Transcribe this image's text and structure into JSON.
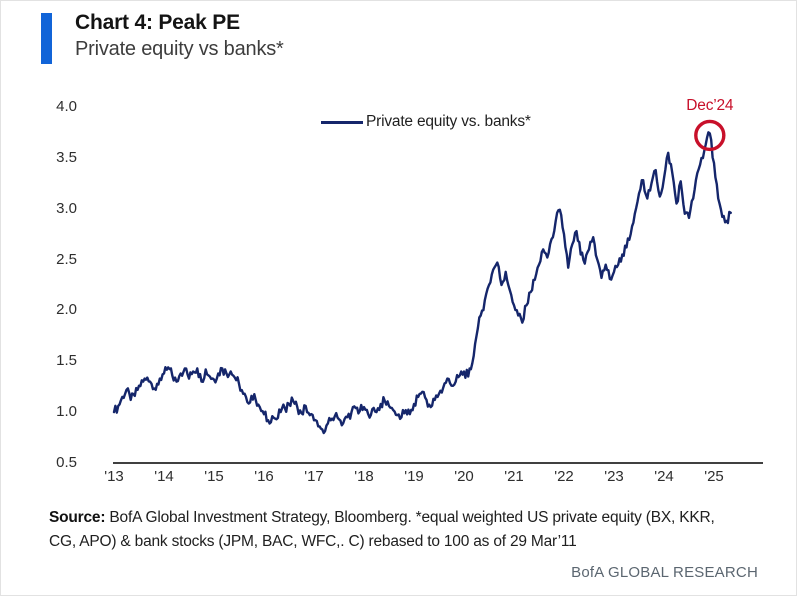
{
  "header": {
    "title": "Chart 4: Peak PE",
    "subtitle": "Private equity vs banks*"
  },
  "legend": {
    "label": "Private equity vs. banks*"
  },
  "annotation": {
    "label": "Dec’24"
  },
  "footer": {
    "source_label": "Source:",
    "source_line1": " BofA Global Investment Strategy, Bloomberg. *equal weighted US private equity (BX, KKR,",
    "source_line2": "CG, APO) & bank stocks (JPM, BAC, WFC,. C) rebased to 100 as of 29 Mar’11",
    "brand": "BofA GLOBAL RESEARCH"
  },
  "colors": {
    "accent_blue": "#1164d8",
    "line_navy": "#15266b",
    "annotation_red": "#c8102a",
    "axis_black": "#000000"
  },
  "chart_data": {
    "type": "line",
    "title": "Chart 4: Peak PE",
    "subtitle": "Private equity vs banks*",
    "series_name": "Private equity vs. banks*",
    "x_start": "2013-01",
    "x_end": "2025-05",
    "x_interval": "monthly",
    "x_tick_labels": [
      "'13",
      "'14",
      "'15",
      "'16",
      "'17",
      "'18",
      "'19",
      "'20",
      "'21",
      "'22",
      "'23",
      "'24",
      "'25"
    ],
    "y_ticks": [
      4.0,
      3.5,
      3.0,
      2.5,
      2.0,
      1.5,
      1.0,
      0.5
    ],
    "y_tick_labels": [
      "4.0",
      "3.5",
      "3.0",
      "2.5",
      "2.0",
      "1.5",
      "1.0",
      "0.5"
    ],
    "ylim": [
      0.5,
      4.0
    ],
    "grid": false,
    "legend_position": "top-center",
    "annotation": {
      "label": "Dec’24",
      "x": "2024-12",
      "y": 3.74
    },
    "values": [
      1.0,
      1.06,
      1.15,
      1.22,
      1.12,
      1.16,
      1.26,
      1.3,
      1.34,
      1.28,
      1.22,
      1.33,
      1.38,
      1.44,
      1.36,
      1.3,
      1.38,
      1.43,
      1.33,
      1.4,
      1.43,
      1.3,
      1.42,
      1.35,
      1.32,
      1.38,
      1.43,
      1.38,
      1.4,
      1.34,
      1.28,
      1.18,
      1.1,
      1.16,
      1.12,
      1.05,
      0.98,
      0.92,
      0.96,
      0.93,
      1.0,
      1.04,
      1.08,
      1.11,
      1.05,
      0.99,
      1.06,
      0.97,
      0.92,
      0.86,
      0.83,
      0.87,
      0.92,
      0.96,
      0.93,
      0.89,
      0.95,
      1.0,
      1.04,
      1.01,
      1.05,
      0.98,
      1.03,
      1.0,
      1.08,
      1.11,
      1.06,
      1.02,
      0.97,
      0.95,
      1.02,
      0.98,
      1.08,
      1.15,
      1.2,
      1.12,
      1.05,
      1.12,
      1.18,
      1.24,
      1.33,
      1.26,
      1.3,
      1.36,
      1.4,
      1.35,
      1.48,
      1.75,
      1.95,
      2.1,
      2.25,
      2.4,
      2.47,
      2.25,
      2.38,
      2.2,
      2.05,
      1.95,
      1.88,
      2.05,
      2.18,
      2.3,
      2.45,
      2.6,
      2.52,
      2.7,
      2.88,
      2.99,
      2.75,
      2.42,
      2.65,
      2.78,
      2.55,
      2.46,
      2.6,
      2.72,
      2.5,
      2.32,
      2.45,
      2.31,
      2.38,
      2.45,
      2.55,
      2.62,
      2.75,
      2.95,
      3.15,
      3.28,
      3.1,
      3.25,
      3.38,
      3.12,
      3.3,
      3.55,
      3.35,
      3.05,
      3.27,
      2.95,
      2.91,
      3.1,
      3.35,
      3.5,
      3.63,
      3.74,
      3.45,
      3.1,
      2.92,
      2.88,
      2.96
    ]
  }
}
